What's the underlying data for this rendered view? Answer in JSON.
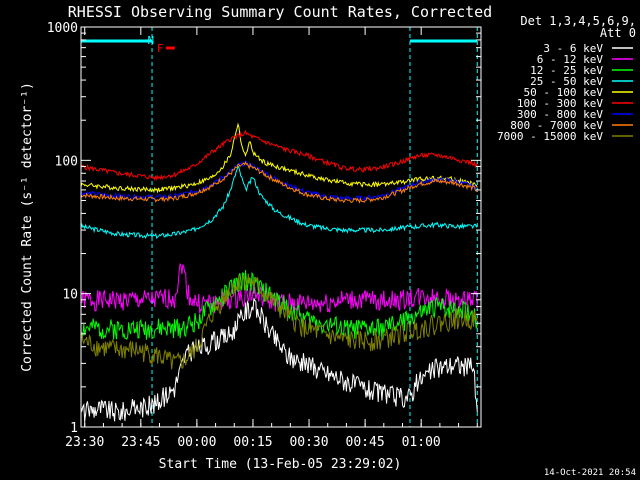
{
  "chart_data": {
    "type": "line",
    "title": "RHESSI Observing Summary Count Rates, Corrected",
    "xlabel": "Start Time (13-Feb-05 23:29:02)",
    "ylabel": "Corrected Count Rate (s⁻¹ detector⁻¹)",
    "x_range_min": [
      0,
      107
    ],
    "y_scale": "log",
    "ylim": [
      1,
      1000
    ],
    "x_ticks": [
      {
        "t": 1,
        "label": "23:30"
      },
      {
        "t": 16,
        "label": "23:45"
      },
      {
        "t": 31,
        "label": "00:00"
      },
      {
        "t": 46,
        "label": "00:15"
      },
      {
        "t": 61,
        "label": "00:30"
      },
      {
        "t": 76,
        "label": "00:45"
      },
      {
        "t": 91,
        "label": "01:00"
      }
    ],
    "y_ticks": [
      {
        "v": 1,
        "label": "1"
      },
      {
        "v": 10,
        "label": "10"
      },
      {
        "v": 100,
        "label": "100"
      },
      {
        "v": 1000,
        "label": "1000"
      }
    ],
    "legend_header": [
      "Det 1,3,4,5,6,9,",
      "Att 0"
    ],
    "legend_position": "right",
    "timestamp": "14-Oct-2021 20:54",
    "flags": [
      {
        "label": "N",
        "color": "#00ffff",
        "t": 21
      },
      {
        "label": "F",
        "color": "#ff0000",
        "t": 23.5
      }
    ],
    "night_intervals": [
      [
        0,
        19
      ],
      [
        88,
        106
      ]
    ],
    "series": [
      {
        "name": "3 - 6 keV",
        "color": "#ffffff",
        "x": [
          0,
          5,
          10,
          15,
          20,
          25,
          28,
          32,
          36,
          40,
          42,
          44,
          46,
          48,
          50,
          55,
          60,
          65,
          70,
          75,
          80,
          85,
          88,
          90,
          95,
          100,
          105,
          106
        ],
        "y": [
          1.3,
          1.4,
          1.3,
          1.4,
          1.5,
          2.0,
          3.5,
          4.0,
          4.5,
          5.0,
          6.0,
          7.5,
          8.0,
          7.0,
          5.5,
          3.5,
          3.0,
          2.6,
          2.3,
          2.0,
          1.8,
          1.7,
          1.7,
          2.2,
          2.8,
          3.0,
          2.8,
          1.2
        ]
      },
      {
        "name": "6 - 12 keV",
        "color": "#ff00ff",
        "x": [
          0,
          10,
          20,
          25,
          27,
          29,
          31,
          35,
          40,
          44,
          46,
          48,
          50,
          55,
          60,
          65,
          70,
          75,
          80,
          85,
          90,
          95,
          100,
          105,
          106
        ],
        "y": [
          9.0,
          9.0,
          9.0,
          9.5,
          17.0,
          9.5,
          8.5,
          8.5,
          9.0,
          10.0,
          10.0,
          9.5,
          9.0,
          8.5,
          8.5,
          8.5,
          9.0,
          9.0,
          9.0,
          9.0,
          9.5,
          9.5,
          9.0,
          9.0,
          9.0
        ]
      },
      {
        "name": "12 - 25 keV",
        "color": "#00ff00",
        "x": [
          0,
          10,
          20,
          25,
          30,
          35,
          40,
          44,
          46,
          48,
          50,
          55,
          60,
          65,
          70,
          75,
          80,
          85,
          90,
          95,
          100,
          105,
          106
        ],
        "y": [
          5.5,
          5.5,
          5.5,
          5.5,
          6.0,
          8.0,
          11.0,
          13.0,
          12.0,
          11.0,
          10.0,
          8.0,
          6.5,
          6.0,
          5.5,
          5.5,
          5.5,
          6.0,
          7.0,
          8.0,
          8.0,
          7.0,
          6.0
        ]
      },
      {
        "name": "25 - 50 keV",
        "color": "#00ffff",
        "x": [
          0,
          10,
          20,
          25,
          30,
          35,
          38,
          40,
          42,
          44,
          46,
          48,
          50,
          52,
          55,
          60,
          65,
          70,
          75,
          80,
          85,
          90,
          95,
          100,
          105,
          106
        ],
        "y": [
          32,
          28,
          27,
          28,
          30,
          36,
          45,
          60,
          90,
          60,
          75,
          55,
          48,
          42,
          38,
          33,
          31,
          30,
          30,
          30,
          31,
          32,
          33,
          32,
          32,
          32
        ]
      },
      {
        "name": "50 - 100 keV",
        "color": "#ffff00",
        "x": [
          0,
          10,
          20,
          25,
          30,
          35,
          38,
          40,
          42,
          43,
          44,
          45,
          46,
          48,
          50,
          55,
          60,
          65,
          70,
          75,
          80,
          85,
          90,
          95,
          100,
          105,
          106
        ],
        "y": [
          66,
          62,
          60,
          62,
          66,
          74,
          90,
          110,
          190,
          130,
          105,
          140,
          115,
          100,
          94,
          85,
          78,
          72,
          68,
          66,
          66,
          68,
          72,
          74,
          72,
          66,
          64
        ]
      },
      {
        "name": "100 - 300 keV",
        "color": "#ff0000",
        "x": [
          0,
          10,
          20,
          25,
          30,
          35,
          40,
          44,
          46,
          50,
          55,
          60,
          65,
          70,
          75,
          80,
          85,
          90,
          95,
          100,
          105,
          106
        ],
        "y": [
          90,
          80,
          74,
          78,
          90,
          115,
          145,
          160,
          150,
          135,
          120,
          110,
          98,
          88,
          85,
          88,
          96,
          108,
          110,
          103,
          95,
          90
        ]
      },
      {
        "name": "300 - 800 keV",
        "color": "#0000ff",
        "x": [
          0,
          10,
          20,
          25,
          30,
          35,
          40,
          42,
          44,
          46,
          48,
          50,
          55,
          60,
          65,
          70,
          75,
          80,
          85,
          90,
          95,
          100,
          105,
          106
        ],
        "y": [
          57,
          54,
          53,
          54,
          58,
          66,
          82,
          92,
          95,
          90,
          84,
          78,
          66,
          58,
          54,
          52,
          52,
          54,
          60,
          68,
          72,
          70,
          64,
          61
        ]
      },
      {
        "name": "800 - 7000 keV",
        "color": "#ff8000",
        "x": [
          0,
          10,
          20,
          25,
          30,
          35,
          40,
          42,
          44,
          46,
          48,
          50,
          55,
          60,
          65,
          70,
          75,
          80,
          85,
          90,
          95,
          100,
          105,
          106
        ],
        "y": [
          55,
          52,
          51,
          52,
          56,
          64,
          80,
          90,
          93,
          88,
          82,
          76,
          64,
          56,
          52,
          50,
          50,
          52,
          58,
          66,
          70,
          68,
          62,
          59
        ]
      },
      {
        "name": "7000 - 15000 keV",
        "color": "#808000",
        "x": [
          0,
          5,
          10,
          15,
          20,
          25,
          28,
          31,
          35,
          40,
          44,
          46,
          48,
          50,
          55,
          60,
          65,
          70,
          75,
          80,
          85,
          90,
          95,
          100,
          105,
          106
        ],
        "y": [
          4.5,
          4.0,
          3.8,
          3.8,
          3.5,
          3.0,
          3.2,
          4.0,
          7.0,
          11.0,
          13.0,
          12.0,
          11.0,
          9.5,
          7.0,
          5.5,
          5.0,
          4.5,
          4.5,
          4.5,
          5.0,
          5.5,
          6.0,
          6.5,
          6.5,
          6.0
        ]
      }
    ]
  }
}
